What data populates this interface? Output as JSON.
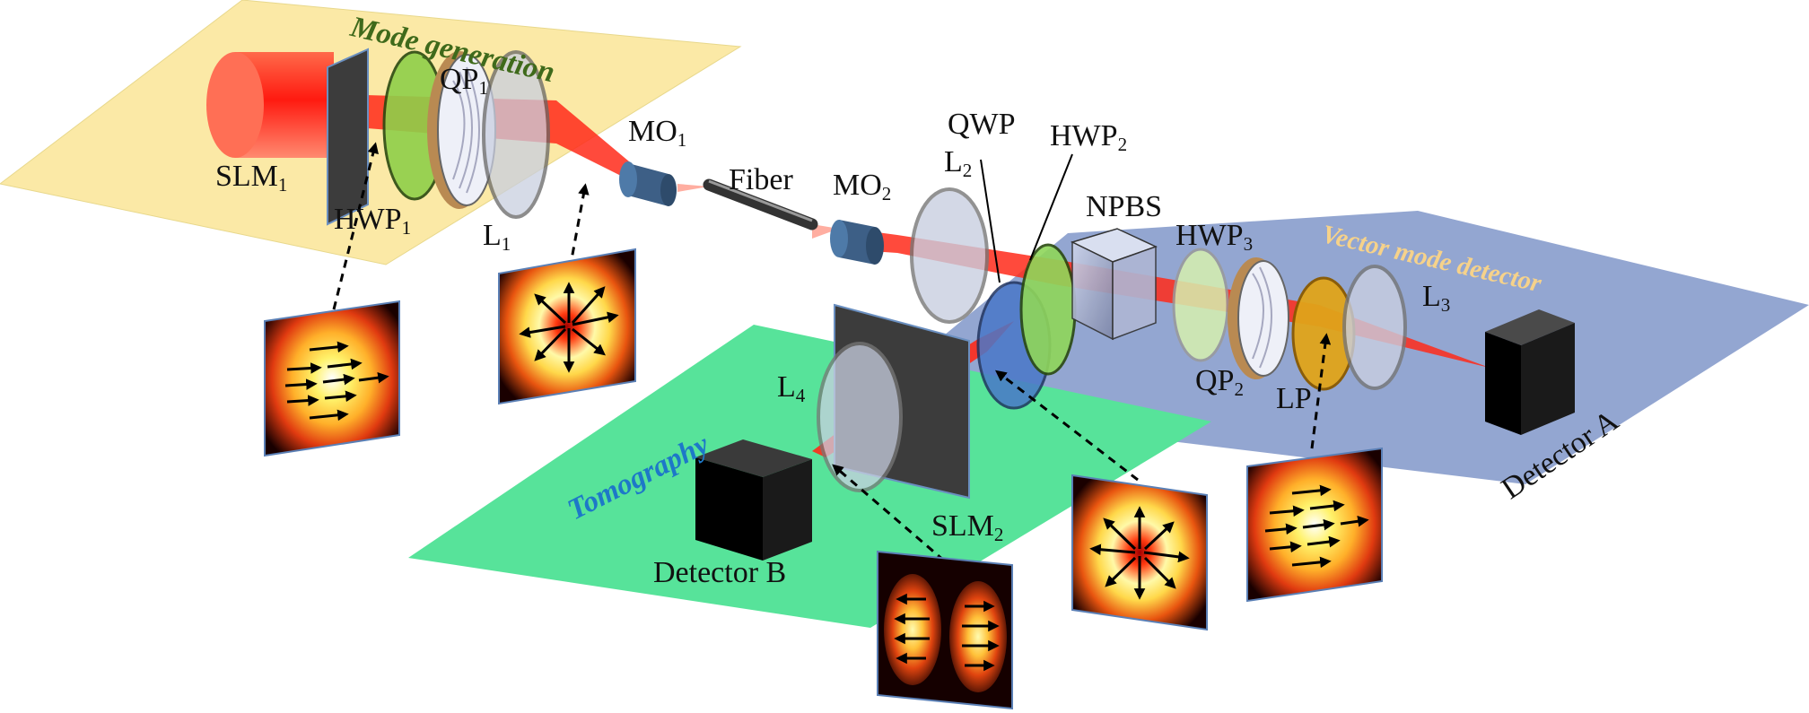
{
  "zones": {
    "mode_generation": "Mode generation",
    "vector_mode_detector": "Vector mode detector",
    "tomography": "Tomography"
  },
  "labels": {
    "slm1": {
      "main": "SLM",
      "sub": "1"
    },
    "hwp1": {
      "main": "HWP",
      "sub": "1"
    },
    "qp1": {
      "main": "QP",
      "sub": "1"
    },
    "l1": {
      "main": "L",
      "sub": "1"
    },
    "mo1": {
      "main": "MO",
      "sub": "1"
    },
    "fiber": "Fiber",
    "mo2": {
      "main": "MO",
      "sub": "2"
    },
    "l2": {
      "main": "L",
      "sub": "2"
    },
    "qwp": "QWP",
    "hwp2": {
      "main": "HWP",
      "sub": "2"
    },
    "npbs": "NPBS",
    "hwp3": {
      "main": "HWP",
      "sub": "3"
    },
    "l3": {
      "main": "L",
      "sub": "3"
    },
    "qp2": {
      "main": "QP",
      "sub": "2"
    },
    "lp": "LP",
    "detector_a": "Detector A",
    "l4": {
      "main": "L",
      "sub": "4"
    },
    "slm2": {
      "main": "SLM",
      "sub": "2"
    },
    "detector_b": "Detector B"
  },
  "colors": {
    "mode_zone": "#fbe9a6",
    "vector_zone": "#93a6d1",
    "tomo_zone": "#57e39a",
    "beam": "#ff1e14",
    "mode_text": "#3f6a1b",
    "vector_text": "#f6d28a",
    "tomo_text": "#1d78c8"
  },
  "insets": [
    {
      "id": "inset-horizontal-polarization",
      "pattern": "uniform-horizontal"
    },
    {
      "id": "inset-radial-polarization",
      "pattern": "radial"
    },
    {
      "id": "inset-tomography-mode",
      "pattern": "hg-two-lobe"
    },
    {
      "id": "inset-vector-mode",
      "pattern": "radial-cross"
    },
    {
      "id": "inset-lp-output",
      "pattern": "uniform-horizontal"
    }
  ]
}
